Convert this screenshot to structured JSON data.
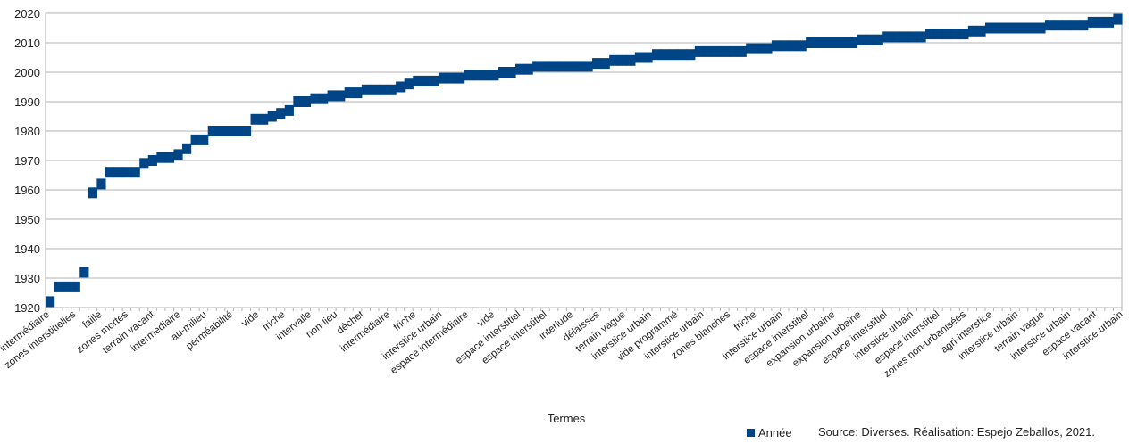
{
  "chart_data": {
    "type": "scatter",
    "xlabel": "Termes",
    "ylabel": "",
    "ylim": [
      1920,
      2020
    ],
    "yticks": [
      1920,
      1930,
      1940,
      1950,
      1960,
      1970,
      1980,
      1990,
      2000,
      2010,
      2020
    ],
    "grid": true,
    "legend_position": "bottom-right",
    "marker_color": "#004586",
    "x_tick_labels": [
      "intermédiaire",
      "zones interstitielles",
      "faille",
      "zones mortes",
      "terrain vacant",
      "intermédiaire",
      "au-milieu",
      "perméabilité",
      "vide",
      "friche",
      "intervalle",
      "non-lieu",
      "déchet",
      "intermédiaire",
      "friche",
      "interstice urbain",
      "espace intermédiaire",
      "vide",
      "espace interstitiel",
      "espace interstitiel",
      "interlude",
      "délaissés",
      "terrain vague",
      "interstice urbain",
      "vide programmé",
      "interstice urbain",
      "zones blanches",
      "friche",
      "interstice urbain",
      "espace interstitiel",
      "expansion urbaine",
      "expansion urbaine",
      "espace interstitiel",
      "interstice urbain",
      "espace interstitiel",
      "zones non-urbanisées",
      "agri-interstice",
      "interstice urbain",
      "terrain vague",
      "interstice urbain",
      "espace vacant",
      "interstice urbain"
    ],
    "series": [
      {
        "name": "Année",
        "values": [
          1922,
          1927,
          1927,
          1927,
          1932,
          1959,
          1962,
          1966,
          1966,
          1966,
          1966,
          1969,
          1970,
          1971,
          1971,
          1972,
          1974,
          1977,
          1977,
          1980,
          1980,
          1980,
          1980,
          1980,
          1984,
          1984,
          1985,
          1986,
          1987,
          1990,
          1990,
          1991,
          1991,
          1992,
          1992,
          1993,
          1993,
          1994,
          1994,
          1994,
          1994,
          1995,
          1996,
          1997,
          1997,
          1997,
          1998,
          1998,
          1998,
          1999,
          1999,
          1999,
          1999,
          2000,
          2000,
          2001,
          2001,
          2002,
          2002,
          2002,
          2002,
          2002,
          2002,
          2002,
          2003,
          2003,
          2004,
          2004,
          2004,
          2005,
          2005,
          2006,
          2006,
          2006,
          2006,
          2006,
          2007,
          2007,
          2007,
          2007,
          2007,
          2007,
          2008,
          2008,
          2008,
          2009,
          2009,
          2009,
          2009,
          2010,
          2010,
          2010,
          2010,
          2010,
          2010,
          2011,
          2011,
          2011,
          2012,
          2012,
          2012,
          2012,
          2012,
          2013,
          2013,
          2013,
          2013,
          2013,
          2014,
          2014,
          2015,
          2015,
          2015,
          2015,
          2015,
          2015,
          2015,
          2016,
          2016,
          2016,
          2016,
          2016,
          2017,
          2017,
          2017,
          2018
        ]
      }
    ]
  },
  "footer": {
    "legend_label": "Année",
    "source": "Source: Diverses. Réalisation: Espejo Zeballos, 2021."
  }
}
